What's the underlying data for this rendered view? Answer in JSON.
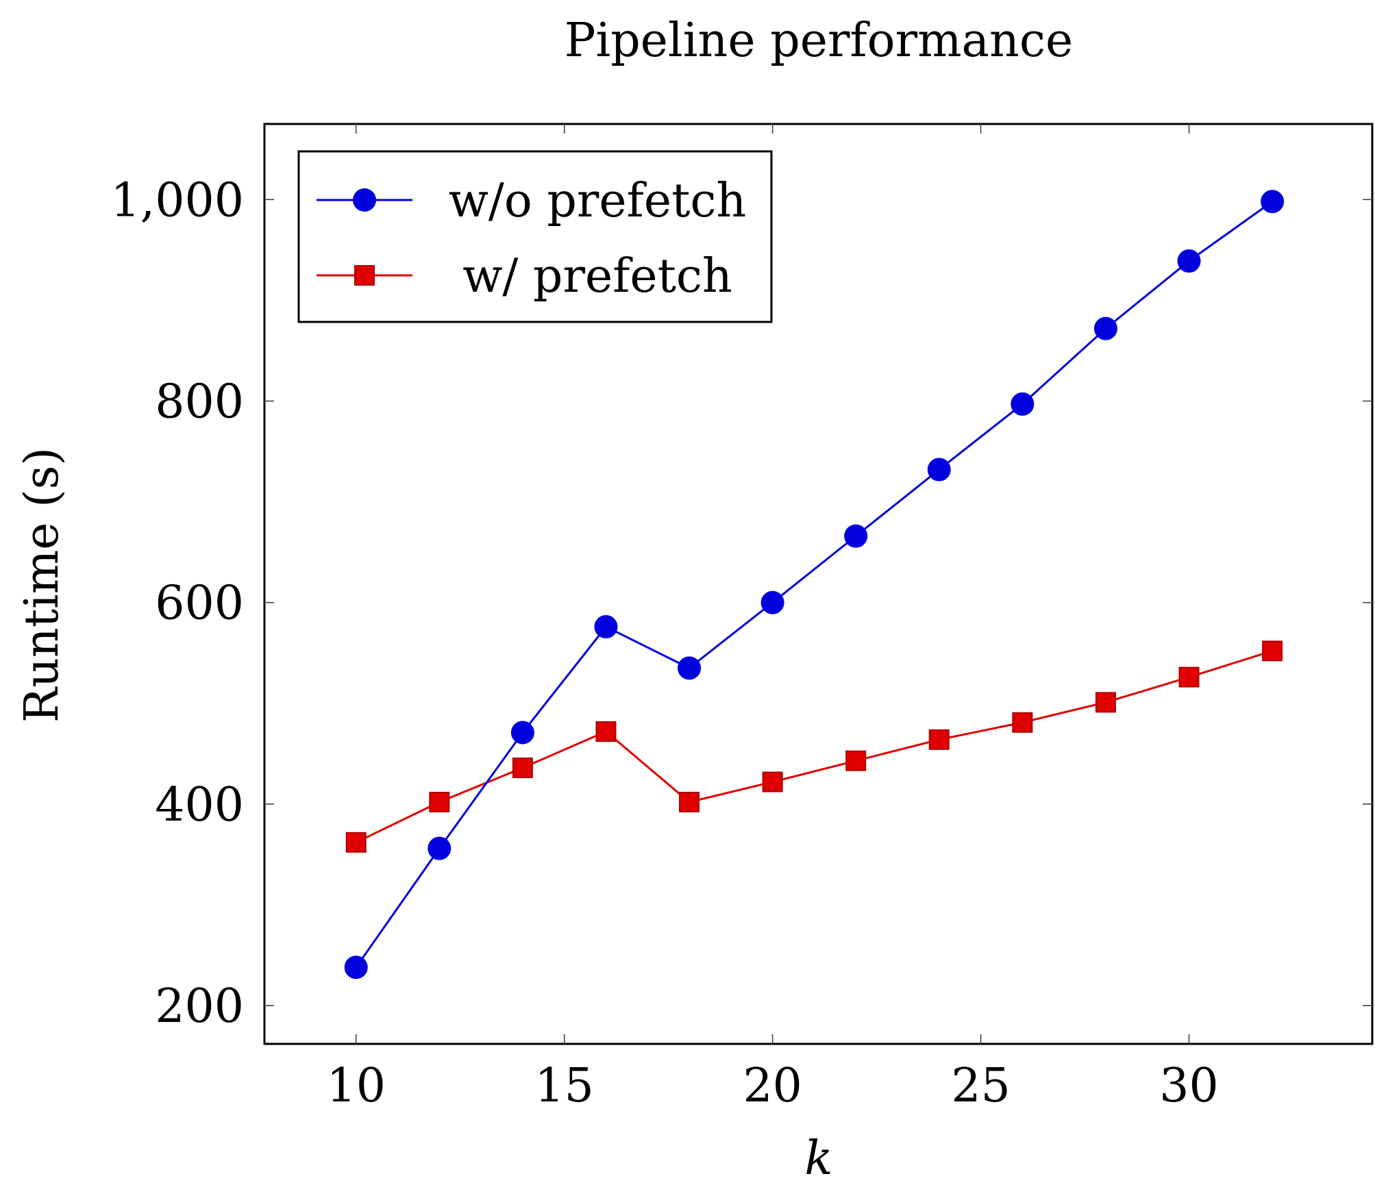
{
  "chart_data": {
    "type": "line",
    "title": "Pipeline performance",
    "xlabel": "k",
    "ylabel": "Runtime (s)",
    "xlim": [
      7.8,
      34.4
    ],
    "ylim": [
      162,
      1075
    ],
    "x_ticks": [
      10,
      15,
      20,
      25,
      30
    ],
    "y_ticks": [
      200,
      400,
      600,
      800,
      1000
    ],
    "x_tick_labels": [
      "10",
      "15",
      "20",
      "25",
      "30"
    ],
    "y_tick_labels": [
      "200",
      "400",
      "600",
      "800",
      "1,000"
    ],
    "grid": false,
    "legend_position": "top-left",
    "x": [
      10,
      12,
      14,
      16,
      18,
      20,
      22,
      24,
      26,
      28,
      30,
      32
    ],
    "series": [
      {
        "name": "w/o prefetch",
        "color": "#0000dd",
        "marker": "circle",
        "values": [
          238,
          356,
          471,
          576,
          535,
          600,
          666,
          732,
          797,
          872,
          939,
          998
        ]
      },
      {
        "name": "w/ prefetch",
        "color": "#e00000",
        "marker": "square",
        "values": [
          362,
          402,
          436,
          472,
          402,
          422,
          443,
          464,
          481,
          501,
          526,
          552
        ]
      }
    ]
  }
}
